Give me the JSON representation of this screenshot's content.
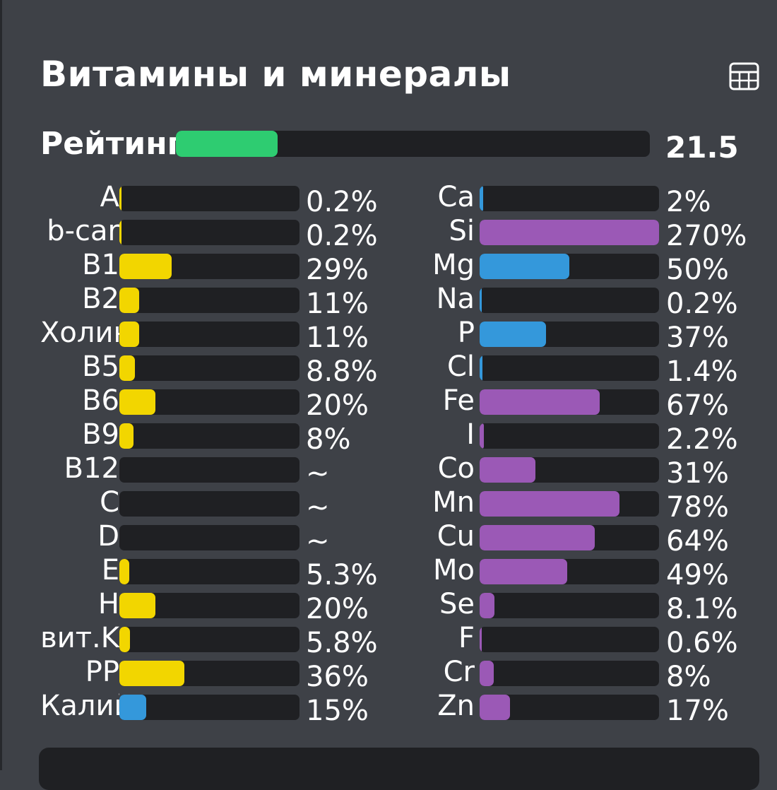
{
  "title": "Витамины и минералы",
  "icon": "table-grid-icon",
  "rating": {
    "label": "Рейтинг",
    "value": "21.5",
    "fill_fraction": 0.215,
    "color": "#2ecc71"
  },
  "colors": {
    "vitamin": "#f2d600",
    "mineral_blue": "#3498db",
    "mineral_purple": "#9b59b6"
  },
  "vitamins": [
    {
      "name": "A",
      "value": "0.2%",
      "percent": 0.2,
      "color": "#f2d600"
    },
    {
      "name": "b-car",
      "value": "0.2%",
      "percent": 0.2,
      "color": "#f2d600"
    },
    {
      "name": "B1",
      "value": "29%",
      "percent": 29,
      "color": "#f2d600"
    },
    {
      "name": "B2",
      "value": "11%",
      "percent": 11,
      "color": "#f2d600"
    },
    {
      "name": "Холин",
      "value": "11%",
      "percent": 11,
      "color": "#f2d600"
    },
    {
      "name": "B5",
      "value": "8.8%",
      "percent": 8.8,
      "color": "#f2d600"
    },
    {
      "name": "B6",
      "value": "20%",
      "percent": 20,
      "color": "#f2d600"
    },
    {
      "name": "B9",
      "value": "8%",
      "percent": 8,
      "color": "#f2d600"
    },
    {
      "name": "B12",
      "value": "~",
      "percent": 0,
      "color": "#f2d600"
    },
    {
      "name": "C",
      "value": "~",
      "percent": 0,
      "color": "#f2d600"
    },
    {
      "name": "D",
      "value": "~",
      "percent": 0,
      "color": "#f2d600"
    },
    {
      "name": "E",
      "value": "5.3%",
      "percent": 5.3,
      "color": "#f2d600"
    },
    {
      "name": "H",
      "value": "20%",
      "percent": 20,
      "color": "#f2d600"
    },
    {
      "name": "вит.K",
      "value": "5.8%",
      "percent": 5.8,
      "color": "#f2d600"
    },
    {
      "name": "PP",
      "value": "36%",
      "percent": 36,
      "color": "#f2d600"
    },
    {
      "name": "Калий",
      "value": "15%",
      "percent": 15,
      "color": "#3498db"
    }
  ],
  "minerals": [
    {
      "name": "Ca",
      "value": "2%",
      "percent": 2,
      "color": "#3498db"
    },
    {
      "name": "Si",
      "value": "270%",
      "percent": 270,
      "color": "#9b59b6"
    },
    {
      "name": "Mg",
      "value": "50%",
      "percent": 50,
      "color": "#3498db"
    },
    {
      "name": "Na",
      "value": "0.2%",
      "percent": 0.2,
      "color": "#3498db"
    },
    {
      "name": "P",
      "value": "37%",
      "percent": 37,
      "color": "#3498db"
    },
    {
      "name": "Cl",
      "value": "1.4%",
      "percent": 1.4,
      "color": "#3498db"
    },
    {
      "name": "Fe",
      "value": "67%",
      "percent": 67,
      "color": "#9b59b6"
    },
    {
      "name": "I",
      "value": "2.2%",
      "percent": 2.2,
      "color": "#9b59b6"
    },
    {
      "name": "Co",
      "value": "31%",
      "percent": 31,
      "color": "#9b59b6"
    },
    {
      "name": "Mn",
      "value": "78%",
      "percent": 78,
      "color": "#9b59b6"
    },
    {
      "name": "Cu",
      "value": "64%",
      "percent": 64,
      "color": "#9b59b6"
    },
    {
      "name": "Mo",
      "value": "49%",
      "percent": 49,
      "color": "#9b59b6"
    },
    {
      "name": "Se",
      "value": "8.1%",
      "percent": 8.1,
      "color": "#9b59b6"
    },
    {
      "name": "F",
      "value": "0.6%",
      "percent": 0.6,
      "color": "#9b59b6"
    },
    {
      "name": "Cr",
      "value": "8%",
      "percent": 8,
      "color": "#9b59b6"
    },
    {
      "name": "Zn",
      "value": "17%",
      "percent": 17,
      "color": "#9b59b6"
    }
  ]
}
